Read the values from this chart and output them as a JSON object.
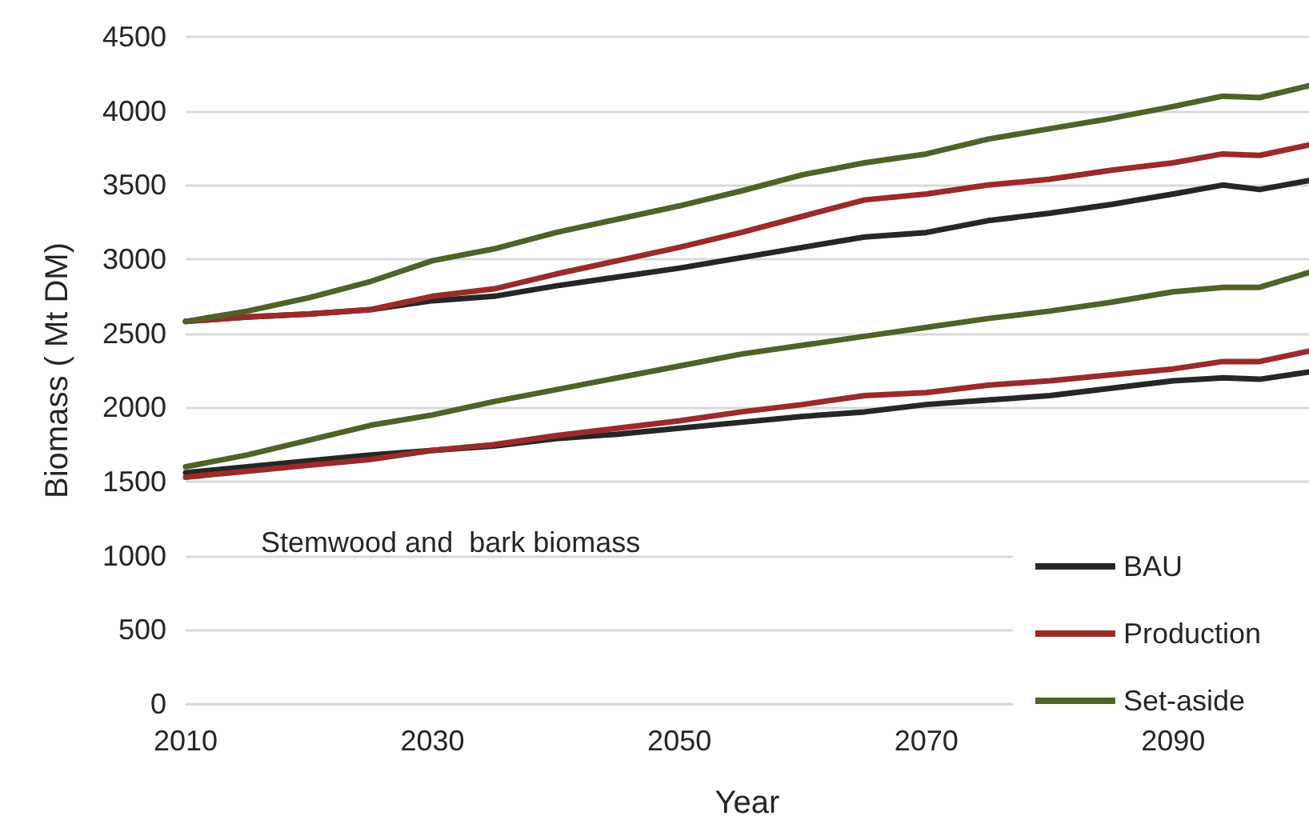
{
  "chart_data": {
    "type": "line",
    "xlabel": "Year",
    "ylabel": "Biomass ( Mt DM)",
    "annotations": [
      "Stemwood and  bark biomass"
    ],
    "x": [
      2010,
      2015,
      2020,
      2025,
      2030,
      2035,
      2040,
      2045,
      2050,
      2055,
      2060,
      2065,
      2070,
      2075,
      2080,
      2085,
      2090,
      2094,
      2097,
      2101
    ],
    "xlim": [
      2010,
      2101
    ],
    "xticks": [
      2010,
      2030,
      2050,
      2070,
      2090
    ],
    "ylim": [
      0,
      4500
    ],
    "yticks": [
      0,
      500,
      1000,
      1500,
      2000,
      2500,
      3000,
      3500,
      4000,
      4500
    ],
    "grid": "y",
    "legend": "bottom right",
    "marker": "none",
    "line_style": "solid",
    "series": [
      {
        "name": "BAU",
        "color": "#262626",
        "values": [
          2580,
          2610,
          2630,
          2660,
          2720,
          2750,
          2820,
          2880,
          2940,
          3010,
          3080,
          3150,
          3180,
          3260,
          3310,
          3370,
          3440,
          3500,
          3470,
          3530
        ]
      },
      {
        "name": "Production",
        "color": "#9b2a2a",
        "values": [
          2580,
          2610,
          2630,
          2660,
          2750,
          2800,
          2900,
          2990,
          3080,
          3180,
          3290,
          3400,
          3440,
          3500,
          3540,
          3600,
          3650,
          3710,
          3700,
          3770
        ]
      },
      {
        "name": "Set-aside",
        "color": "#4f6228",
        "values": [
          2580,
          2650,
          2740,
          2850,
          2990,
          3070,
          3180,
          3270,
          3360,
          3460,
          3570,
          3650,
          3710,
          3810,
          3880,
          3950,
          4030,
          4100,
          4090,
          4170
        ]
      },
      {
        "color": "#262626",
        "values": [
          1560,
          1600,
          1640,
          1680,
          1710,
          1740,
          1790,
          1820,
          1860,
          1900,
          1940,
          1970,
          2020,
          2050,
          2080,
          2130,
          2180,
          2200,
          2190,
          2240
        ]
      },
      {
        "color": "#9b2a2a",
        "values": [
          1530,
          1570,
          1610,
          1650,
          1710,
          1750,
          1810,
          1860,
          1910,
          1970,
          2020,
          2080,
          2100,
          2150,
          2180,
          2220,
          2260,
          2310,
          2310,
          2380
        ]
      },
      {
        "color": "#4f6228",
        "values": [
          1600,
          1680,
          1780,
          1880,
          1950,
          2040,
          2120,
          2200,
          2280,
          2360,
          2420,
          2480,
          2540,
          2600,
          2650,
          2710,
          2780,
          2810,
          2810,
          2910
        ]
      }
    ]
  }
}
